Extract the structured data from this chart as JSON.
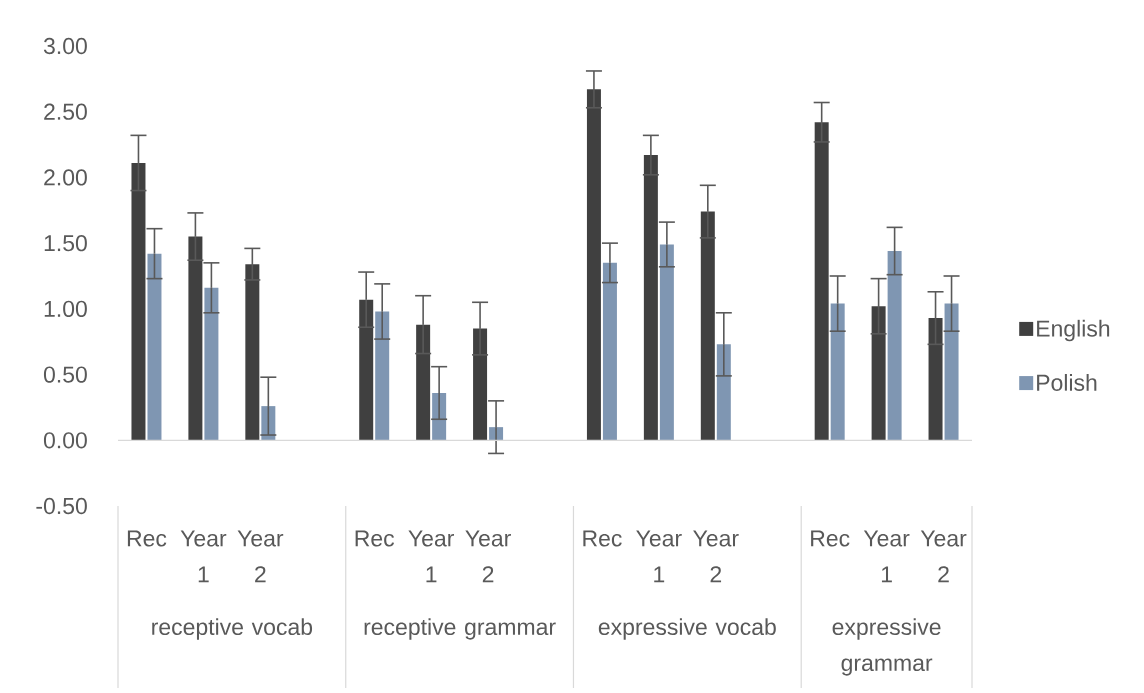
{
  "chart_data": {
    "type": "bar",
    "categories": [
      "Rec",
      "Year 1",
      "Year 2",
      null,
      "Rec",
      "Year 1",
      "Year 2",
      null,
      "Rec",
      "Year 1",
      "Year 2",
      null,
      "Rec",
      "Year 1",
      "Year 2"
    ],
    "series": [
      {
        "name": "English",
        "color": "#404040",
        "values": [
          2.11,
          1.55,
          1.34,
          null,
          1.07,
          0.88,
          0.85,
          null,
          2.67,
          2.17,
          1.74,
          null,
          2.42,
          1.02,
          0.93
        ],
        "errors": [
          0.21,
          0.18,
          0.12,
          null,
          0.21,
          0.22,
          0.2,
          null,
          0.14,
          0.15,
          0.2,
          null,
          0.15,
          0.21,
          0.2
        ]
      },
      {
        "name": "Polish",
        "color": "#7f96b2",
        "values": [
          1.42,
          1.16,
          0.26,
          null,
          0.98,
          0.36,
          0.1,
          null,
          1.35,
          1.49,
          0.73,
          null,
          1.04,
          1.44,
          1.04
        ],
        "errors": [
          0.19,
          0.19,
          0.22,
          null,
          0.21,
          0.2,
          0.2,
          null,
          0.15,
          0.17,
          0.24,
          null,
          0.21,
          0.18,
          0.21
        ]
      }
    ],
    "ylim": [
      -0.5,
      3
    ],
    "yticks": [
      {
        "value": -0.5,
        "label": "-0.50"
      },
      {
        "value": 0,
        "label": "0.00"
      },
      {
        "value": 0.5,
        "label": "0.50"
      },
      {
        "value": 1,
        "label": "1.00"
      },
      {
        "value": 1.5,
        "label": "1.50"
      },
      {
        "value": 2,
        "label": "2.00"
      },
      {
        "value": 2.5,
        "label": "2.50"
      },
      {
        "value": 3,
        "label": "3.00"
      }
    ],
    "annotations": [
      "receptive vocab",
      "receptive grammar",
      "expressive vocab",
      "expressive grammar"
    ],
    "legend": "right"
  }
}
